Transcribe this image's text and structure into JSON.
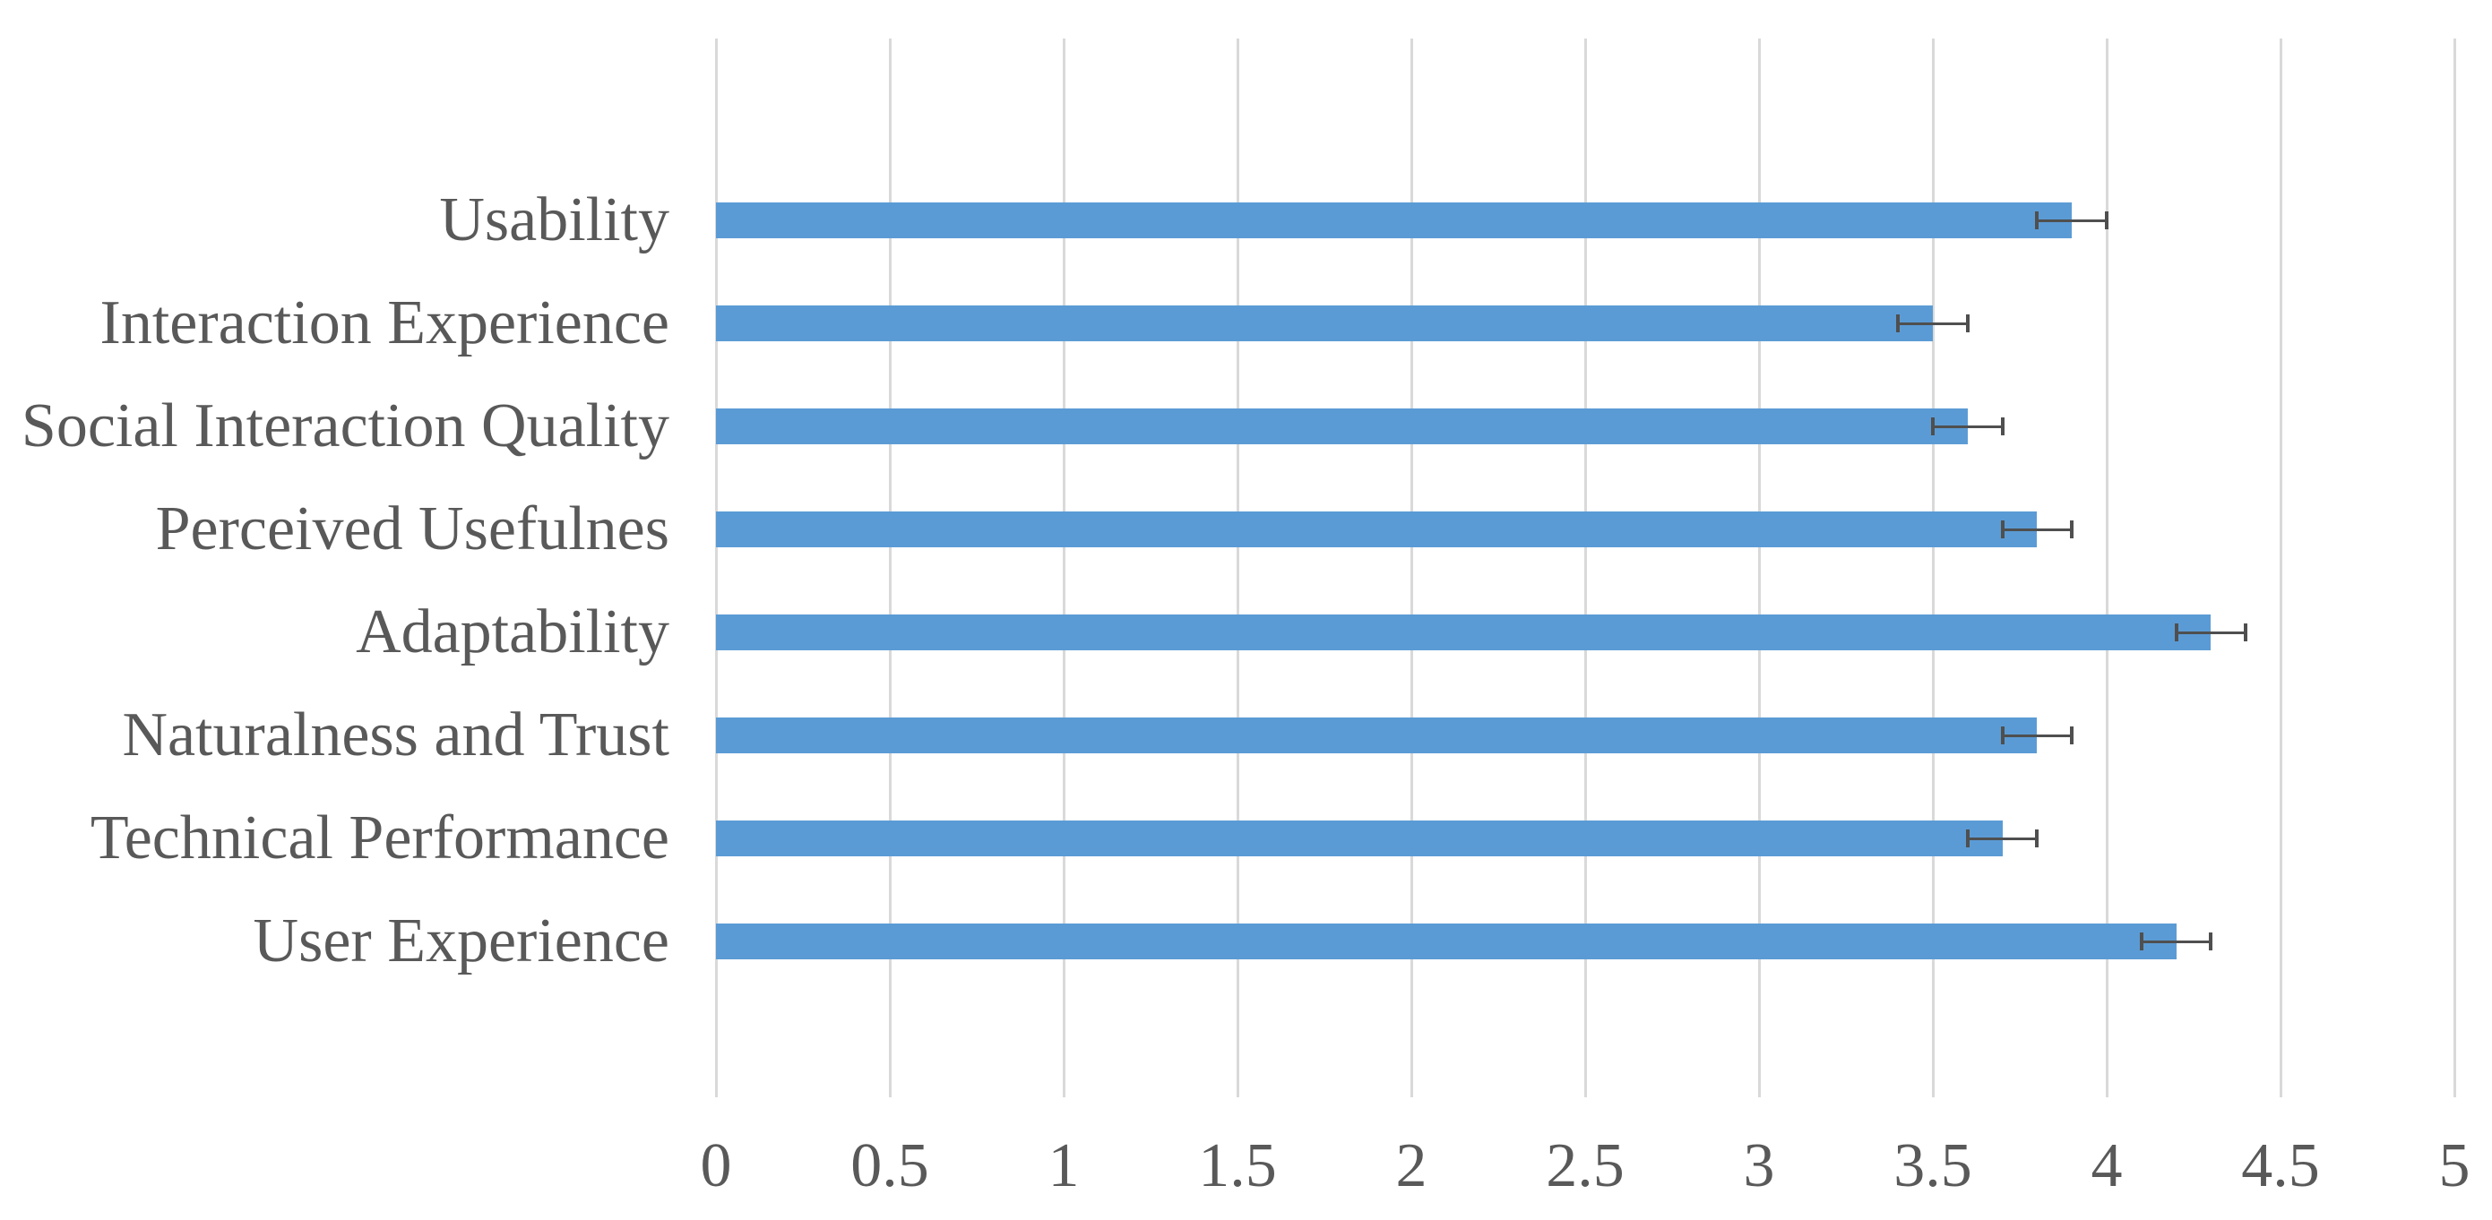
{
  "chart_data": {
    "type": "bar",
    "orientation": "horizontal",
    "title": "",
    "xlabel": "",
    "ylabel": "",
    "categories": [
      "Usability",
      "Interaction Experience",
      "Social Interaction Quality",
      "Perceived Usefulnes",
      "Adaptability",
      "Naturalness and Trust",
      "Technical Performance",
      "User Experience"
    ],
    "values": [
      3.9,
      3.5,
      3.6,
      3.8,
      4.3,
      3.8,
      3.7,
      4.2
    ],
    "errors": [
      0.1,
      0.1,
      0.1,
      0.1,
      0.1,
      0.1,
      0.1,
      0.1
    ],
    "xlim": [
      0,
      5
    ],
    "xticks": [
      0,
      0.5,
      1,
      1.5,
      2,
      2.5,
      3,
      3.5,
      4,
      4.5,
      5
    ],
    "xtick_labels": [
      "0",
      "0.5",
      "1",
      "1.5",
      "2",
      "2.5",
      "3",
      "3.5",
      "4",
      "4.5",
      "5"
    ],
    "grid": "vertical",
    "legend": null,
    "colors": {
      "bar": "#5B9BD5",
      "error_bar": "#4F4F4F",
      "gridline": "#D9D9D9",
      "text": "#595959",
      "background": "#FFFFFF"
    }
  }
}
